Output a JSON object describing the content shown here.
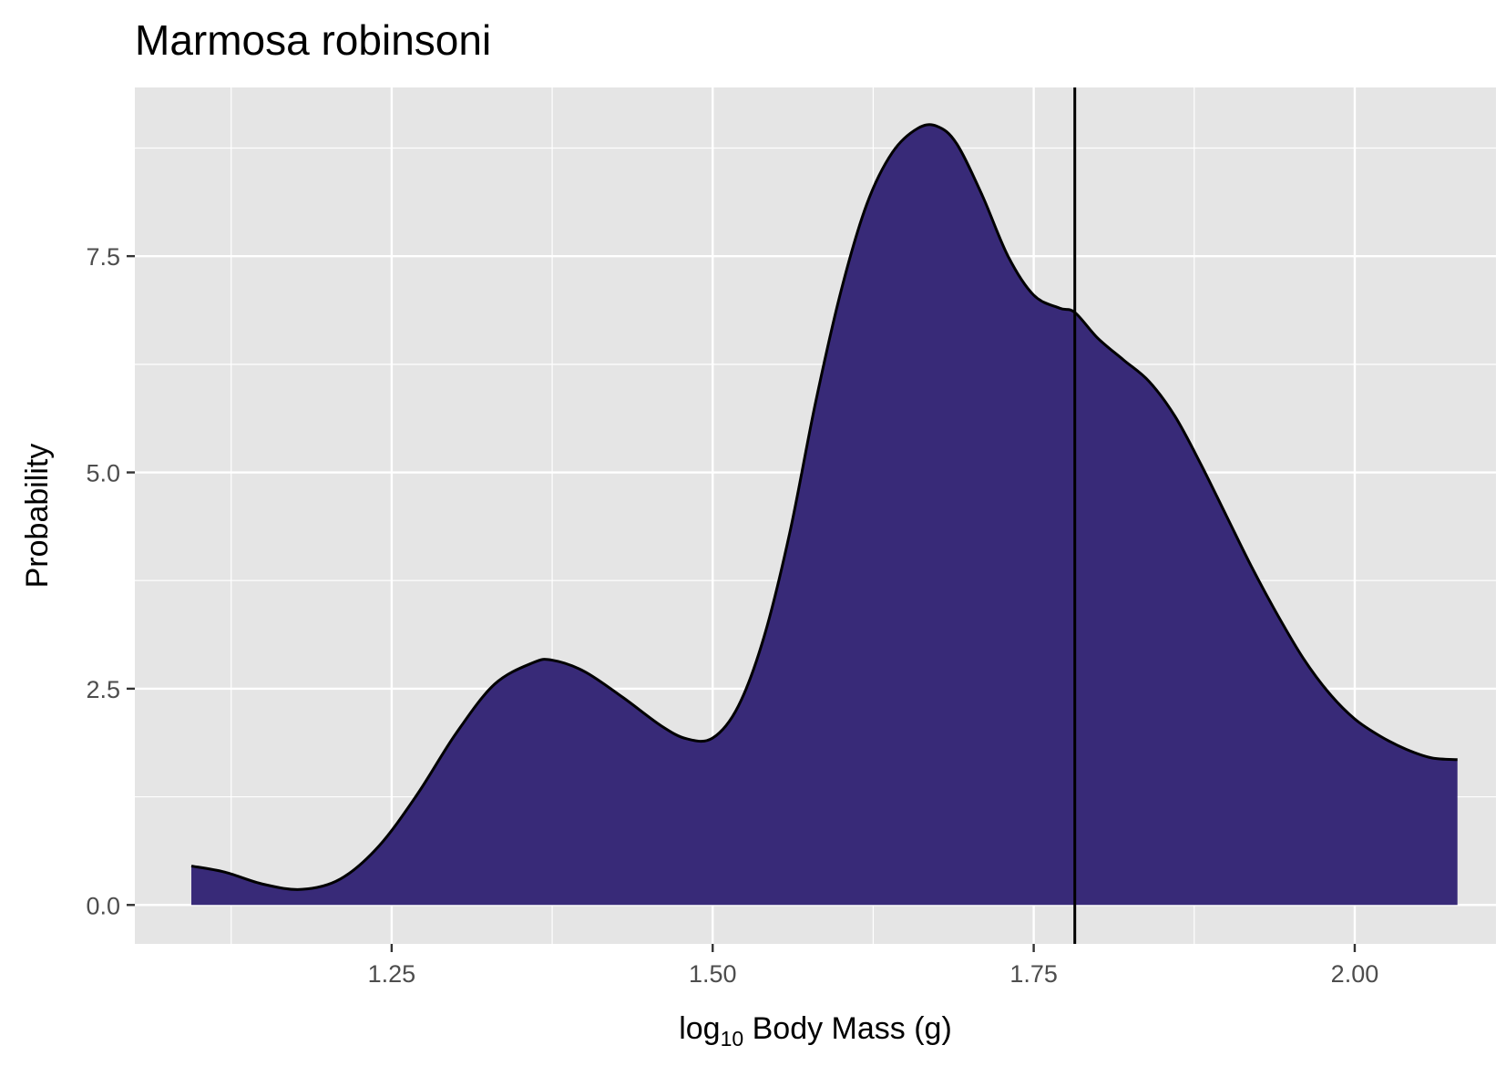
{
  "chart_data": {
    "type": "area",
    "title": "Marmosa robinsoni",
    "xlabel": "log10 Body Mass (g)",
    "xlabel_parts": {
      "main": "log",
      "subscript": "10",
      "rest": " Body Mass ",
      "unit": "(g)"
    },
    "ylabel": "Probability",
    "xlim": [
      1.05,
      2.11
    ],
    "ylim": [
      -0.45,
      9.45
    ],
    "x_ticks": [
      1.25,
      1.5,
      1.75,
      2.0
    ],
    "x_tick_labels": [
      "1.25",
      "1.50",
      "1.75",
      "2.00"
    ],
    "y_ticks": [
      0.0,
      2.5,
      5.0,
      7.5
    ],
    "y_tick_labels": [
      "0.0",
      "2.5",
      "5.0",
      "7.5"
    ],
    "grid": true,
    "background": "#e5e5e5",
    "fill_color": "#382a78",
    "line_color": "#000000",
    "vline_x": 1.782,
    "series": [
      {
        "x": [
          1.094,
          1.12,
          1.15,
          1.18,
          1.21,
          1.24,
          1.27,
          1.3,
          1.33,
          1.36,
          1.375,
          1.4,
          1.43,
          1.46,
          1.48,
          1.5,
          1.52,
          1.54,
          1.56,
          1.58,
          1.6,
          1.62,
          1.64,
          1.66,
          1.675,
          1.69,
          1.71,
          1.73,
          1.75,
          1.77,
          1.782,
          1.8,
          1.82,
          1.84,
          1.86,
          1.88,
          1.9,
          1.92,
          1.94,
          1.96,
          1.98,
          2.0,
          2.02,
          2.04,
          2.06,
          2.08
        ],
        "y": [
          0.45,
          0.38,
          0.24,
          0.18,
          0.3,
          0.68,
          1.28,
          1.98,
          2.55,
          2.8,
          2.83,
          2.7,
          2.4,
          2.07,
          1.92,
          1.93,
          2.3,
          3.1,
          4.3,
          5.8,
          7.1,
          8.1,
          8.7,
          8.98,
          9.0,
          8.8,
          8.2,
          7.5,
          7.05,
          6.9,
          6.85,
          6.55,
          6.3,
          6.05,
          5.65,
          5.1,
          4.5,
          3.9,
          3.35,
          2.85,
          2.45,
          2.15,
          1.95,
          1.8,
          1.7,
          1.68
        ]
      }
    ]
  }
}
